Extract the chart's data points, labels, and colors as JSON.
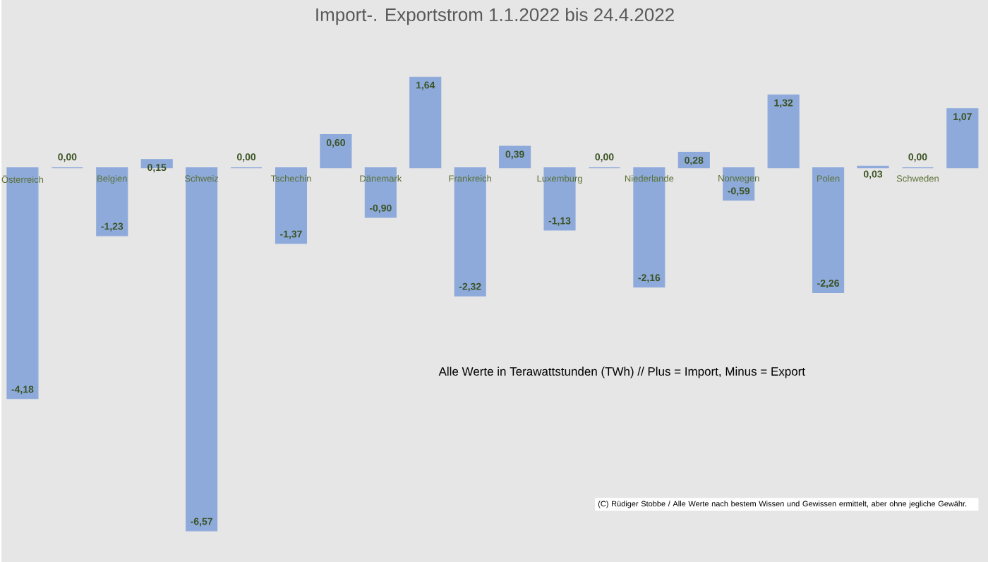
{
  "chart_data": {
    "type": "bar",
    "title": "Import-. Exportstrom 1.1.2022 bis  24.4.2022",
    "categories": [
      "Österreich",
      null,
      "Belgien",
      null,
      "Schweiz",
      null,
      "Tschechin",
      null,
      "Dänemark",
      null,
      "Frankreich",
      null,
      "Luxemburg",
      null,
      "Niederlande",
      null,
      "Norwegen",
      null,
      "Polen",
      null,
      "Schweden",
      null
    ],
    "values": [
      -4.18,
      0.0,
      -1.23,
      0.15,
      -6.57,
      0.0,
      -1.37,
      0.6,
      -0.9,
      1.64,
      -2.32,
      0.39,
      -1.13,
      0.0,
      -2.16,
      0.28,
      -0.59,
      1.32,
      -2.26,
      0.03,
      0.0,
      1.07
    ],
    "value_labels": [
      "-4,18",
      "0,00",
      "-1,23",
      "0,15",
      "-6,57",
      "0,00",
      "-1,37",
      "0,60",
      "-0,90",
      "1,64",
      "-2,32",
      "0,39",
      "-1,13",
      "0,00",
      "-2,16",
      "0,28",
      "-0,59",
      "1,32",
      "-2,26",
      "0,03",
      "0,00",
      "1,07"
    ],
    "color": "#8eaadb",
    "annotations": [
      "Alle Werte in Terawattstunden (TWh) // Plus = Import, Minus = Export",
      "(C) Rüdiger Stobbe / Alle Werte nach bestem Wissen und Gewissen ermittelt, aber ohne jegliche Gewähr."
    ]
  }
}
